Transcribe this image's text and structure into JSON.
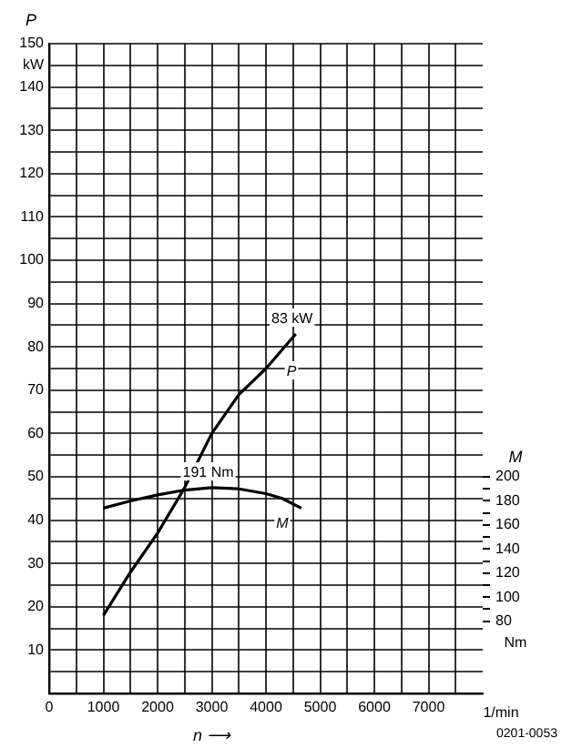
{
  "chart_data": {
    "type": "line",
    "xlabel": "n ⟶",
    "ylabel": "P",
    "y2label": "M",
    "series": [
      {
        "name": "P",
        "color": "#000000",
        "x": [
          1000,
          1500,
          2000,
          2500,
          3000,
          3500,
          4000,
          4550
        ],
        "values": [
          18,
          28,
          37,
          47.5,
          60,
          69,
          75,
          83
        ],
        "value_labels": [
          null,
          null,
          null,
          null,
          null,
          null,
          null,
          "83 kW"
        ]
      },
      {
        "name": "M",
        "color": "#000000",
        "axis": "y2",
        "x": [
          1000,
          1500,
          2000,
          2500,
          3000,
          3500,
          4000,
          4300,
          4650
        ],
        "values": [
          174,
          180,
          185,
          189,
          191,
          190,
          186,
          182,
          174
        ],
        "value_labels": [
          null,
          null,
          null,
          null,
          "191 Nm",
          null,
          null,
          null,
          null
        ]
      }
    ],
    "xlim": [
      0,
      8000
    ],
    "xticks": [
      0,
      {
        "value": 500,
        "label": null
      },
      1000,
      {
        "value": 1500,
        "label": null
      },
      2000,
      {
        "value": 2500,
        "label": null
      },
      3000,
      {
        "value": 3500,
        "label": null
      },
      4000,
      {
        "value": 4500,
        "label": null
      },
      5000,
      {
        "value": 5500,
        "label": null
      },
      6000,
      {
        "value": 6500,
        "label": null
      },
      7000,
      {
        "value": 7500,
        "label": null
      }
    ],
    "ylim": [
      0,
      150
    ],
    "yticks": [
      {
        "value": 5,
        "label": null
      },
      10,
      {
        "value": 15,
        "label": null
      },
      20,
      {
        "value": 25,
        "label": null
      },
      30,
      {
        "value": 35,
        "label": null
      },
      40,
      {
        "value": 45,
        "label": null
      },
      50,
      {
        "value": 55,
        "label": null
      },
      60,
      {
        "value": 65,
        "label": null
      },
      70,
      {
        "value": 75,
        "label": null
      },
      80,
      {
        "value": 85,
        "label": null
      },
      90,
      {
        "value": 95,
        "label": null
      },
      100,
      {
        "value": 105,
        "label": null
      },
      110,
      {
        "value": 115,
        "label": null
      },
      120,
      {
        "value": 125,
        "label": null
      },
      130,
      {
        "value": 135,
        "label": null
      },
      140,
      {
        "value": 145,
        "label": "kW"
      },
      150
    ],
    "y2lim": [
      20,
      560
    ],
    "y2ticks": [
      80,
      {
        "value": 90,
        "label": null
      },
      100,
      {
        "value": 110,
        "label": null
      },
      120,
      {
        "value": 130,
        "label": null
      },
      140,
      {
        "value": 150,
        "label": null
      },
      160,
      {
        "value": 170,
        "label": null
      },
      180,
      {
        "value": 190,
        "label": null
      },
      200
    ],
    "grid": true,
    "legend": false,
    "marker": "none",
    "line_style": "solid",
    "annotations": [
      "1/min",
      "Nm",
      "0201-0053"
    ]
  }
}
